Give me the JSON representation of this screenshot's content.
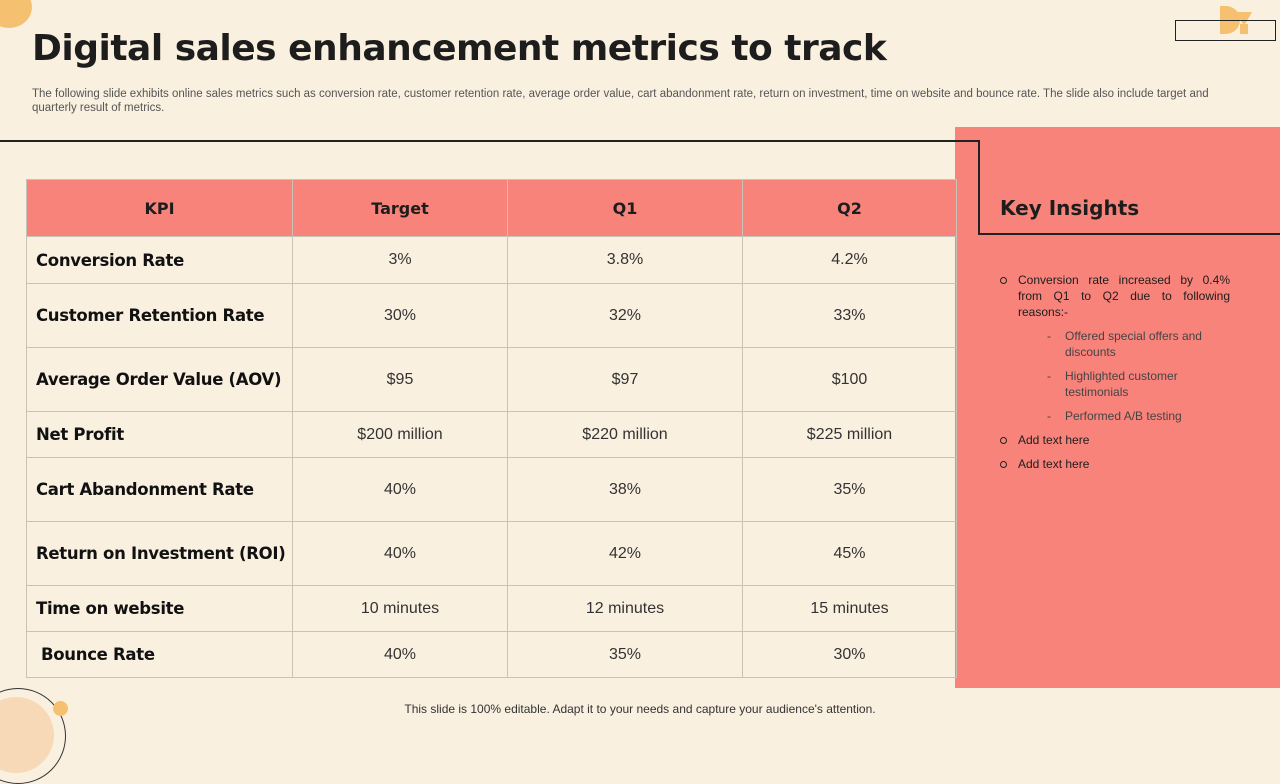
{
  "title": "Digital sales enhancement metrics to track",
  "subtitle": "The following slide exhibits online sales metrics such as conversion rate, customer retention rate, average order value, cart abandonment rate, return on investment, time on website and bounce rate. The slide also include target and quarterly result of metrics.",
  "table": {
    "headers": [
      "KPI",
      "Target",
      "Q1",
      "Q2"
    ],
    "rows": [
      {
        "kpi": "Conversion Rate",
        "target": "3%",
        "q1": "3.8%",
        "q2": "4.2%"
      },
      {
        "kpi": "Customer Retention Rate",
        "target": "30%",
        "q1": "32%",
        "q2": "33%"
      },
      {
        "kpi": "Average Order Value (AOV)",
        "target": "$95",
        "q1": "$97",
        "q2": "$100"
      },
      {
        "kpi": "Net Profit",
        "target": "$200 million",
        "q1": "$220 million",
        "q2": "$225 million"
      },
      {
        "kpi": "Cart Abandonment Rate",
        "target": "40%",
        "q1": "38%",
        "q2": "35%"
      },
      {
        "kpi": "Return on Investment (ROI)",
        "target": "40%",
        "q1": "42%",
        "q2": "45%"
      },
      {
        "kpi": "Time on website",
        "target": "10 minutes",
        "q1": "12 minutes",
        "q2": "15 minutes"
      },
      {
        "kpi": "Bounce Rate",
        "target": "40%",
        "q1": "35%",
        "q2": "30%"
      }
    ]
  },
  "insights": {
    "title": "Key Insights",
    "items": [
      {
        "text": "Conversion rate increased by 0.4% from Q1 to Q2 due to following reasons:-",
        "sub": [
          "Offered special offers and discounts",
          "Highlighted customer testimonials",
          "Performed A/B testing"
        ]
      },
      {
        "text": "Add text here"
      },
      {
        "text": "Add text here"
      }
    ]
  },
  "footer": "This slide is 100% editable. Adapt it to your needs and capture your audience's attention.",
  "colors": {
    "background": "#FAF0E0",
    "accent_coral": "#F7837B",
    "accent_gold": "#F5C170"
  },
  "icons": {
    "logo": "brand-logo-icon"
  }
}
